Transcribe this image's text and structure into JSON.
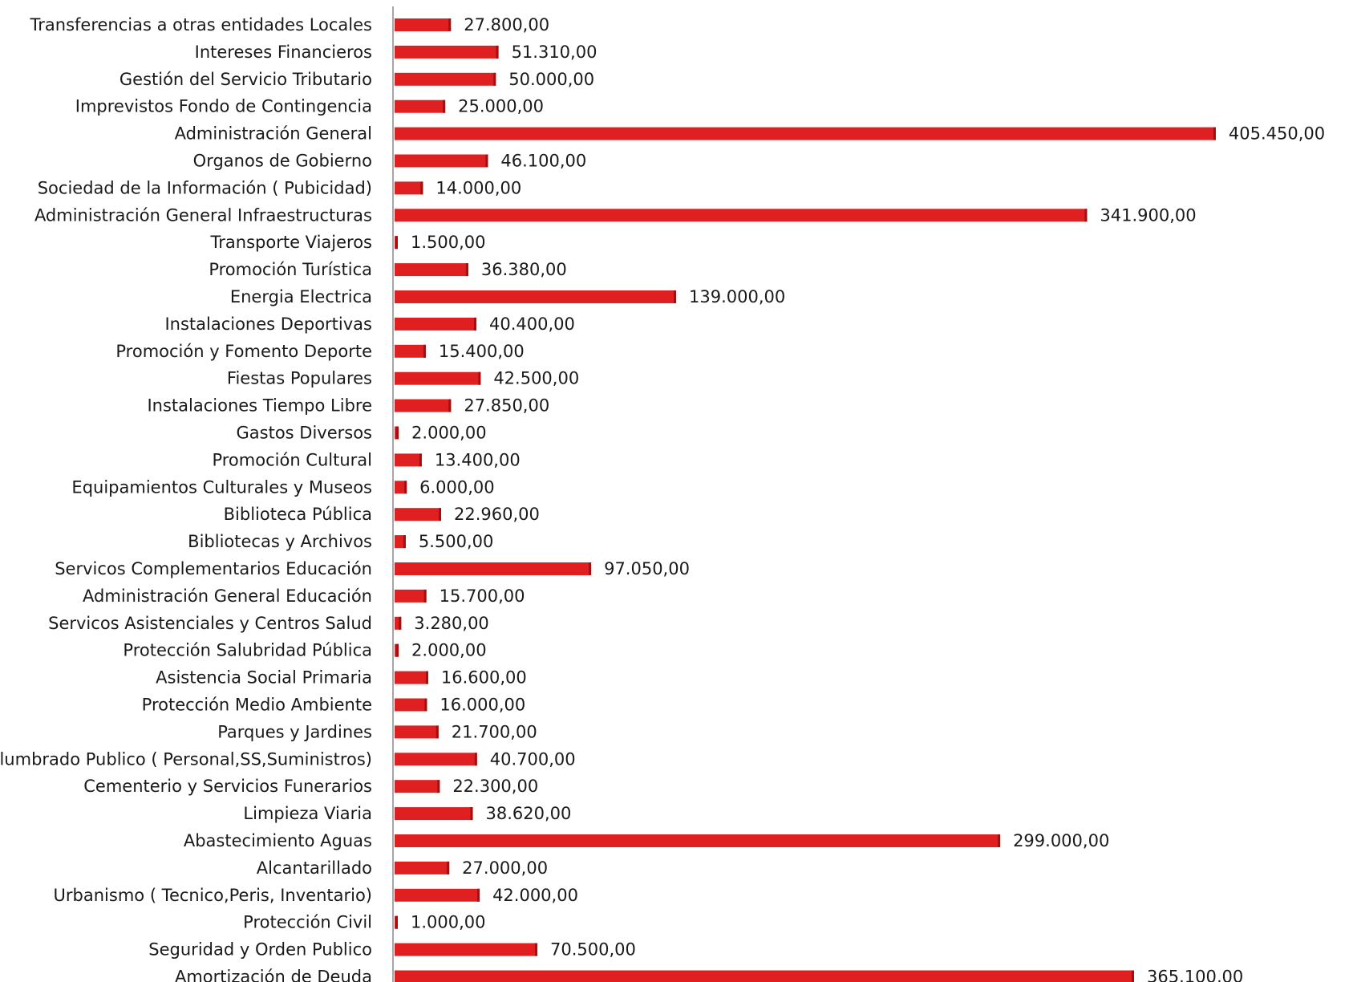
{
  "chart_data": {
    "type": "bar",
    "orientation": "horizontal",
    "bar_color": "#e02020",
    "grid": false,
    "legend": "none",
    "title": "",
    "xlabel": "",
    "ylabel": "",
    "xlim": [
      0,
      415000
    ],
    "categories": [
      "Transferencias a otras entidades Locales",
      "Intereses Financieros",
      "Gestión del Servicio Tributario",
      "Imprevistos Fondo de  Contingencia",
      "Administración General",
      "Organos de Gobierno",
      "Sociedad de la Información ( Pubicidad)",
      "Administración General Infraestructuras",
      "Transporte Viajeros",
      "Promoción Turística",
      "Energia Electrica",
      "Instalaciones Deportivas",
      "Promoción y Fomento Deporte",
      "Fiestas Populares",
      "Instalaciones Tiempo Libre",
      "Gastos Diversos",
      "Promoción Cultural",
      "Equipamientos Culturales y Museos",
      "Biblioteca Pública",
      "Bibliotecas y Archivos",
      "Servicos  Complementarios Educación",
      "Administración General Educación",
      "Servicos Asistenciales y Centros Salud",
      "Protección Salubridad Pública",
      "Asistencia Social Primaria",
      "Protección Medio Ambiente",
      "Parques y Jardines",
      "Alumbrado Publico ( Personal,SS,Suministros)",
      "Cementerio y Servicios Funerarios",
      "Limpieza Viaria",
      "Abastecimiento Aguas",
      "Alcantarillado",
      "Urbanismo ( Tecnico,Peris, Inventario)",
      "Protección Civil",
      "Seguridad y Orden Publico",
      "Amortización de Deuda"
    ],
    "values": [
      27800,
      51310,
      50000,
      25000,
      405450,
      46100,
      14000,
      341900,
      1500,
      36380,
      139000,
      40400,
      15400,
      42500,
      27850,
      2000,
      13400,
      6000,
      22960,
      5500,
      97050,
      15700,
      3280,
      2000,
      16600,
      16000,
      21700,
      40700,
      22300,
      38620,
      299000,
      27000,
      42000,
      1000,
      70500,
      365100
    ],
    "value_labels": [
      "27.800,00",
      "51.310,00",
      "50.000,00",
      "25.000,00",
      "405.450,00",
      "46.100,00",
      "14.000,00",
      "341.900,00",
      "1.500,00",
      "36.380,00",
      "139.000,00",
      "40.400,00",
      "15.400,00",
      "42.500,00",
      "27.850,00",
      "2.000,00",
      "13.400,00",
      "6.000,00",
      "22.960,00",
      "5.500,00",
      "97.050,00",
      "15.700,00",
      "3.280,00",
      "2.000,00",
      "16.600,00",
      "16.000,00",
      "21.700,00",
      "40.700,00",
      "22.300,00",
      "38.620,00",
      "299.000,00",
      "27.000,00",
      "42.000,00",
      "1.000,00",
      "70.500,00",
      "365.100,00"
    ]
  }
}
